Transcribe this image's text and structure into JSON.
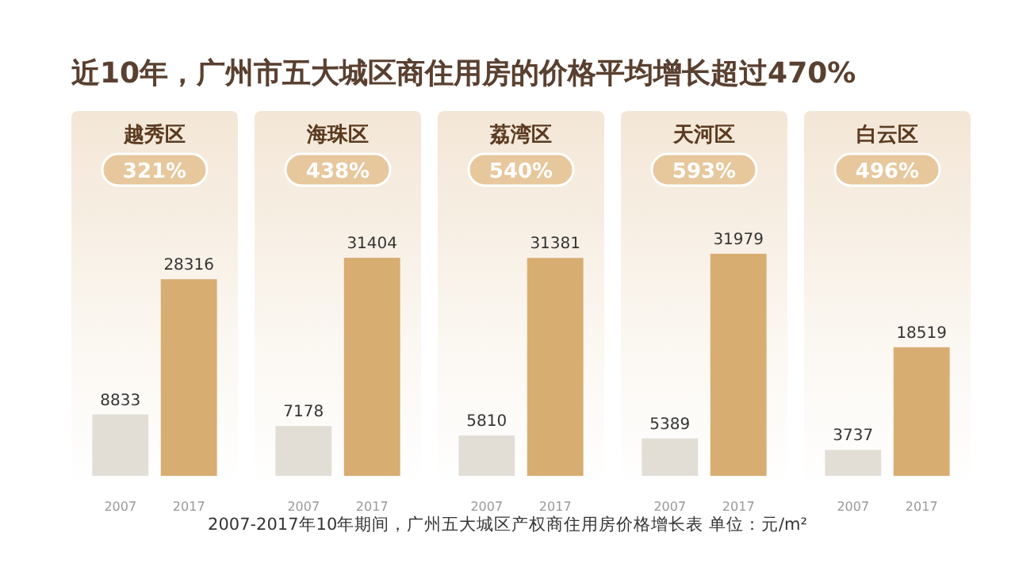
{
  "chart_data": [
    {
      "type": "other",
      "title": "近10年，广州市五大城区商住用房的价格平均增长超过470%",
      "annotations": [
        "2007-2017年10年期间，广州五大城区产权商住用房价格增长表    单位：元/m²"
      ]
    },
    {
      "type": "bar",
      "title": "越秀区",
      "annotations": [
        "321%"
      ],
      "categories": [
        "2007",
        "2017"
      ],
      "values": [
        8833,
        28316
      ],
      "colors": [
        "#e2ded6",
        "#d8ad72"
      ],
      "data_labels": true
    },
    {
      "type": "bar",
      "title": "海珠区",
      "annotations": [
        "438%"
      ],
      "categories": [
        "2007",
        "2017"
      ],
      "values": [
        7178,
        31404
      ],
      "colors": [
        "#e2ded6",
        "#d8ad72"
      ],
      "data_labels": true
    },
    {
      "type": "bar",
      "title": "荔湾区",
      "annotations": [
        "540%"
      ],
      "categories": [
        "2007",
        "2017"
      ],
      "values": [
        5810,
        31381
      ],
      "colors": [
        "#e2ded6",
        "#d8ad72"
      ],
      "data_labels": true
    },
    {
      "type": "bar",
      "title": "天河区",
      "annotations": [
        "593%"
      ],
      "categories": [
        "2007",
        "2017"
      ],
      "values": [
        5389,
        31979
      ],
      "colors": [
        "#e2ded6",
        "#d8ad72"
      ],
      "data_labels": true
    },
    {
      "type": "bar",
      "title": "白云区",
      "annotations": [
        "496%"
      ],
      "categories": [
        "2007",
        "2017"
      ],
      "values": [
        3737,
        18519
      ],
      "colors": [
        "#e2ded6",
        "#d8ad72"
      ],
      "data_labels": true
    }
  ]
}
